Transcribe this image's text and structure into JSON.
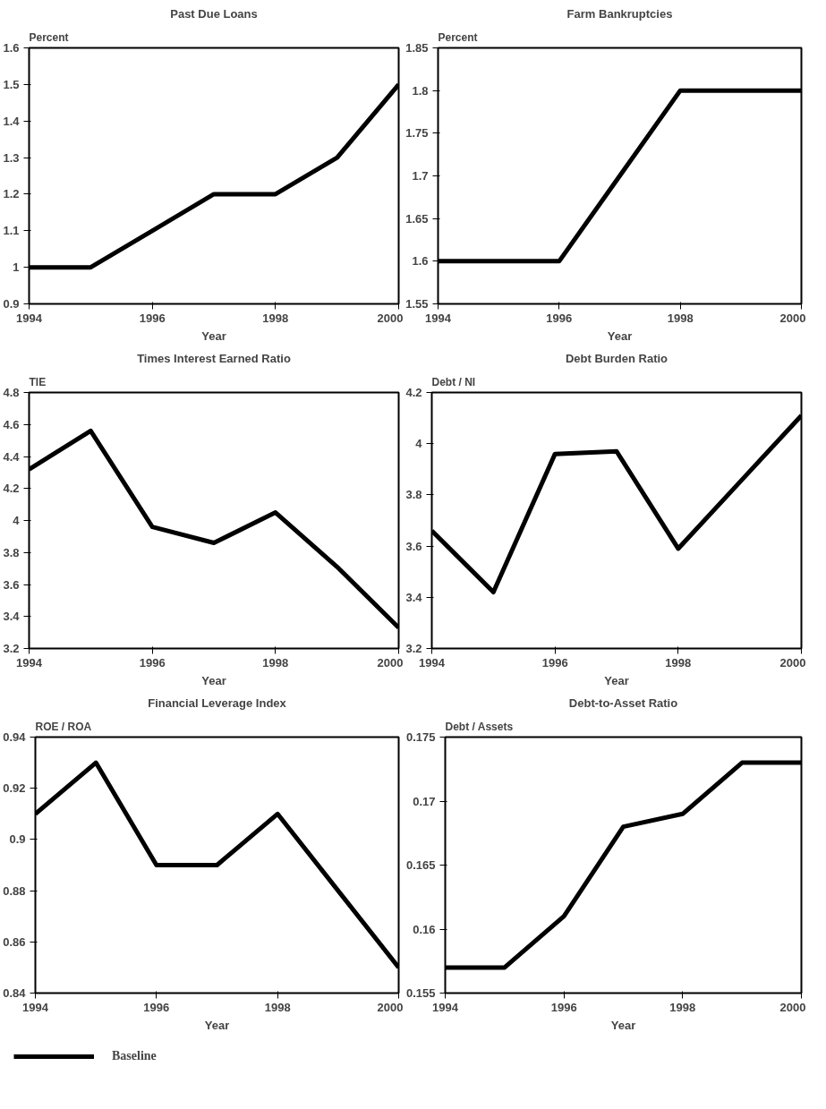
{
  "chart_data": [
    {
      "type": "line",
      "title": "Past Due Loans",
      "ylabel": "Percent",
      "xlabel": "Year",
      "x": [
        1994,
        1995,
        1996,
        1997,
        1998,
        1999,
        2000
      ],
      "series": [
        {
          "color": "#000000",
          "values": [
            1.0,
            1.0,
            1.1,
            1.2,
            1.2,
            1.3,
            1.5
          ]
        }
      ],
      "xlim": [
        1994,
        2000
      ],
      "xticks": [
        1994,
        1996,
        1998,
        2000
      ],
      "ylim": [
        0.9,
        1.6
      ],
      "yticks": [
        0.9,
        1,
        1.1,
        1.2,
        1.3,
        1.4,
        1.5,
        1.6
      ],
      "grid": false,
      "legend": false
    },
    {
      "type": "line",
      "title": "Farm Bankruptcies",
      "ylabel": "Percent",
      "xlabel": "Year",
      "x": [
        1994,
        1995,
        1996,
        1997,
        1998,
        1999,
        2000
      ],
      "series": [
        {
          "color": "#000000",
          "values": [
            1.6,
            1.6,
            1.6,
            1.7,
            1.8,
            1.8,
            1.8
          ]
        }
      ],
      "xlim": [
        1994,
        2000
      ],
      "xticks": [
        1994,
        1996,
        1998,
        2000
      ],
      "ylim": [
        1.55,
        1.85
      ],
      "yticks": [
        1.55,
        1.6,
        1.65,
        1.7,
        1.75,
        1.8,
        1.85
      ],
      "grid": false,
      "legend": false
    },
    {
      "type": "line",
      "title": "Times Interest Earned Ratio",
      "ylabel": "TIE",
      "xlabel": "Year",
      "x": [
        1994,
        1995,
        1996,
        1997,
        1998,
        1999,
        2000
      ],
      "series": [
        {
          "color": "#000000",
          "values": [
            4.32,
            4.56,
            3.96,
            3.86,
            4.05,
            3.71,
            3.33
          ]
        }
      ],
      "xlim": [
        1994,
        2000
      ],
      "xticks": [
        1994,
        1996,
        1998,
        2000
      ],
      "ylim": [
        3.2,
        4.8
      ],
      "yticks": [
        3.2,
        3.4,
        3.6,
        3.8,
        4,
        4.2,
        4.4,
        4.6,
        4.8
      ],
      "grid": false,
      "legend": false
    },
    {
      "type": "line",
      "title": "Debt Burden Ratio",
      "ylabel": "Debt / NI",
      "xlabel": "Year",
      "x": [
        1994,
        1995,
        1996,
        1997,
        1998,
        1999,
        2000
      ],
      "series": [
        {
          "color": "#000000",
          "values": [
            3.66,
            3.42,
            3.96,
            3.97,
            3.59,
            3.85,
            4.11
          ]
        }
      ],
      "xlim": [
        1994,
        2000
      ],
      "xticks": [
        1994,
        1996,
        1998,
        2000
      ],
      "ylim": [
        3.2,
        4.2
      ],
      "yticks": [
        3.2,
        3.4,
        3.6,
        3.8,
        4,
        4.2
      ],
      "grid": false,
      "legend": false
    },
    {
      "type": "line",
      "title": "Financial Leverage Index",
      "ylabel": "ROE / ROA",
      "xlabel": "Year",
      "x": [
        1994,
        1995,
        1996,
        1997,
        1998,
        1999,
        2000
      ],
      "series": [
        {
          "color": "#000000",
          "values": [
            0.91,
            0.93,
            0.89,
            0.89,
            0.91,
            0.88,
            0.85
          ]
        }
      ],
      "xlim": [
        1994,
        2000
      ],
      "xticks": [
        1994,
        1996,
        1998,
        2000
      ],
      "ylim": [
        0.84,
        0.94
      ],
      "yticks": [
        0.84,
        0.86,
        0.88,
        0.9,
        0.92,
        0.94
      ],
      "grid": false,
      "legend": false
    },
    {
      "type": "line",
      "title": "Debt-to-Asset Ratio",
      "ylabel": "Debt / Assets",
      "xlabel": "Year",
      "x": [
        1994,
        1995,
        1996,
        1997,
        1998,
        1999,
        2000
      ],
      "series": [
        {
          "name": "Baseline",
          "color": "#000000",
          "values": [
            0.157,
            0.157,
            0.161,
            0.168,
            0.169,
            0.173,
            0.173
          ]
        }
      ],
      "xlim": [
        1994,
        2000
      ],
      "xticks": [
        1994,
        1996,
        1998,
        2000
      ],
      "ylim": [
        0.155,
        0.175
      ],
      "yticks": [
        0.155,
        0.16,
        0.165,
        0.17,
        0.175
      ],
      "grid": false,
      "legend": "bottom left"
    }
  ]
}
